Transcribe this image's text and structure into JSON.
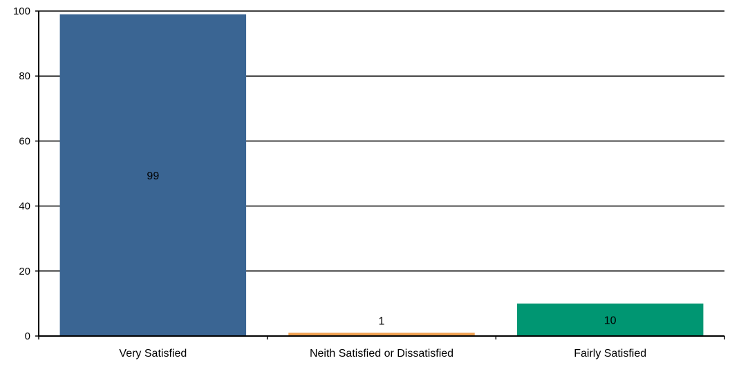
{
  "chart_data": {
    "type": "bar",
    "categories": [
      "Very Satisfied",
      "Neith Satisfied or Dissatisfied",
      "Fairly Satisfied"
    ],
    "values": [
      99,
      1,
      10
    ],
    "data_labels": [
      "99",
      "1",
      "10"
    ],
    "bar_colors": [
      "#3a6593",
      "#f0a050",
      "#009672"
    ],
    "ylim": [
      0,
      100
    ],
    "yticks": [
      0,
      20,
      40,
      60,
      80,
      100
    ],
    "ytick_labels": [
      "0",
      "20",
      "40",
      "60",
      "80",
      "100"
    ],
    "grid": true,
    "legend": false,
    "title": "",
    "xlabel": "",
    "ylabel": ""
  }
}
